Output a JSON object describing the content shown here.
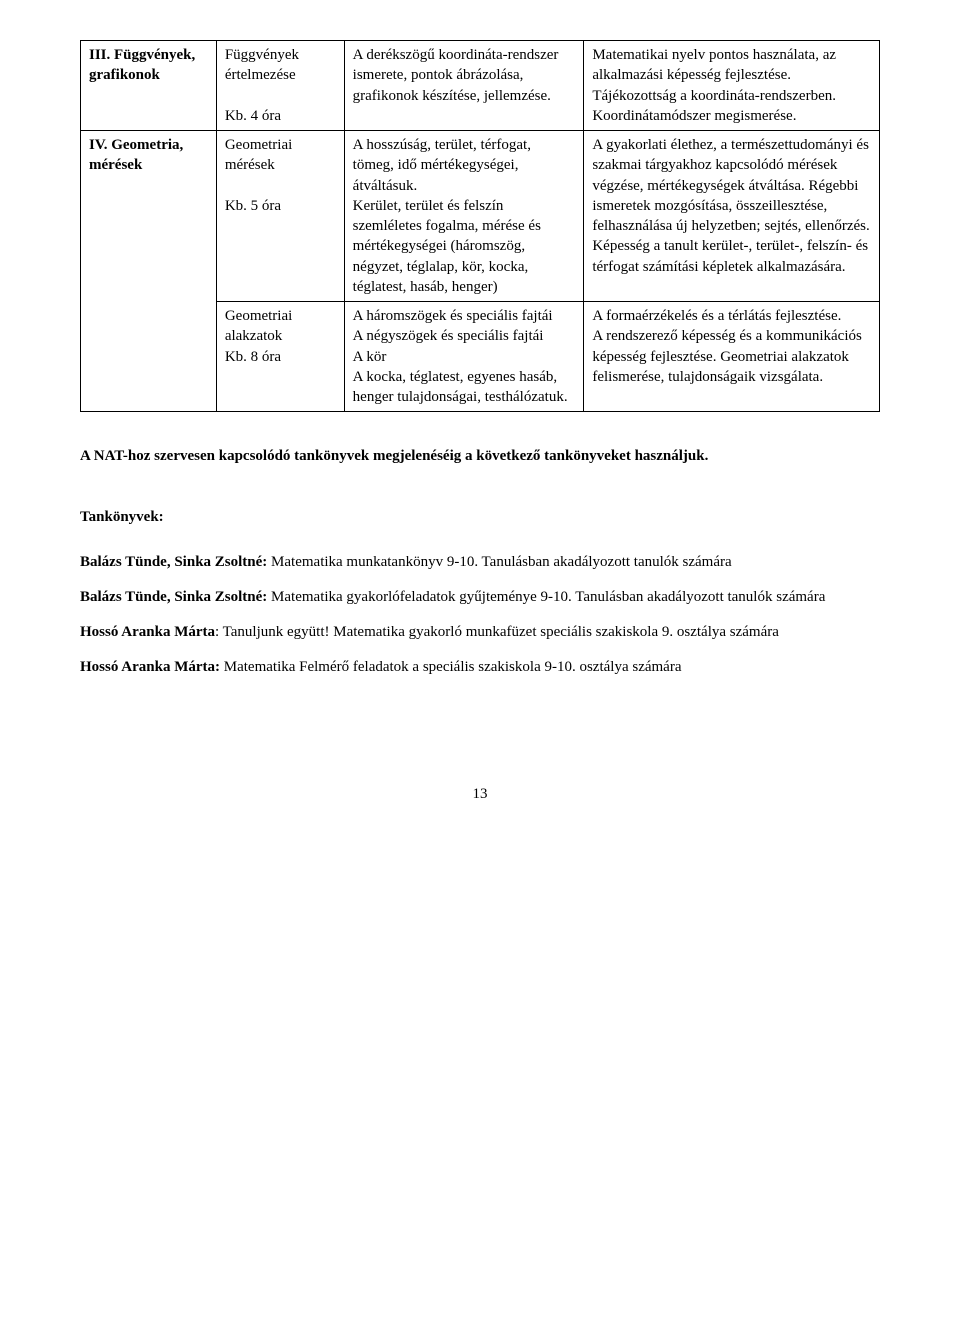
{
  "table": {
    "rows": [
      {
        "topic": "III. Függvények, grafikonok",
        "sub": "Függvények értelmezése\n\nKb. 4 óra",
        "content": "A derékszögű koordináta-rendszer ismerete, pontok ábrázolása, grafikonok készítése, jellemzése.",
        "outcome": "Matematikai nyelv pontos használata, az alkalmazási képesség fejlesztése.\nTájékozottság a koordináta-rendszerben.\nKoordinátamódszer megismerése."
      },
      {
        "topic": "IV. Geometria, mérések",
        "sub": "Geometriai mérések\n\nKb. 5 óra",
        "content": "A hosszúság, terület, térfogat, tömeg, idő mértékegységei, átváltásuk.\nKerület, terület és felszín szemléletes fogalma, mérése és mértékegységei (háromszög, négyzet, téglalap, kör, kocka, téglatest, hasáb, henger)",
        "outcome": "A gyakorlati élethez, a természettudományi és szakmai tárgyakhoz kapcsolódó mérések végzése, mértékegységek átváltása. Régebbi ismeretek mozgósítása, összeillesztése, felhasználása új helyzetben; sejtés, ellenőrzés.\nKépesség a tanult kerület-, terület-, felszín- és térfogat számítási képletek alkalmazására."
      },
      {
        "topic": "",
        "sub": "Geometriai alakzatok\nKb. 8 óra",
        "content": "A háromszögek és speciális fajtái\nA négyszögek és speciális fajtái\nA kör\nA kocka, téglatest, egyenes hasáb, henger tulajdonságai, testhálózatuk.",
        "outcome": "A formaérzékelés és a térlátás fejlesztése.\nA rendszerező képesség és a kommunikációs képesség fejlesztése. Geometriai alakzatok felismerése, tulajdonságaik vizsgálata."
      }
    ]
  },
  "intro_line": "A NAT-hoz szervesen kapcsolódó tankönyvek megjelenéséig a következő tankönyveket használjuk.",
  "textbooks_heading": "Tankönyvek:",
  "textbooks": [
    {
      "author": "Balázs Tünde",
      "author2": "Sinka Zsoltné:",
      "rest": " Matematika munkatankönyv 9-10. Tanulásban akadályozott tanulók számára"
    },
    {
      "author": "Balázs Tünde",
      "author2": "Sinka Zsoltné:",
      "rest": " Matematika gyakorlófeladatok gyűjteménye 9-10. Tanulásban akadályozott tanulók számára"
    },
    {
      "author": "Hossó Aranka Márta",
      "author2": "",
      "rest": ": Tanuljunk együtt! Matematika gyakorló munkafüzet speciális szakiskola 9. osztálya számára"
    },
    {
      "author": "Hossó Aranka Márta:",
      "author2": "",
      "rest": " Matematika Felmérő feladatok a speciális szakiskola 9-10. osztálya számára"
    }
  ],
  "pagenum": "13",
  "sep": ", "
}
